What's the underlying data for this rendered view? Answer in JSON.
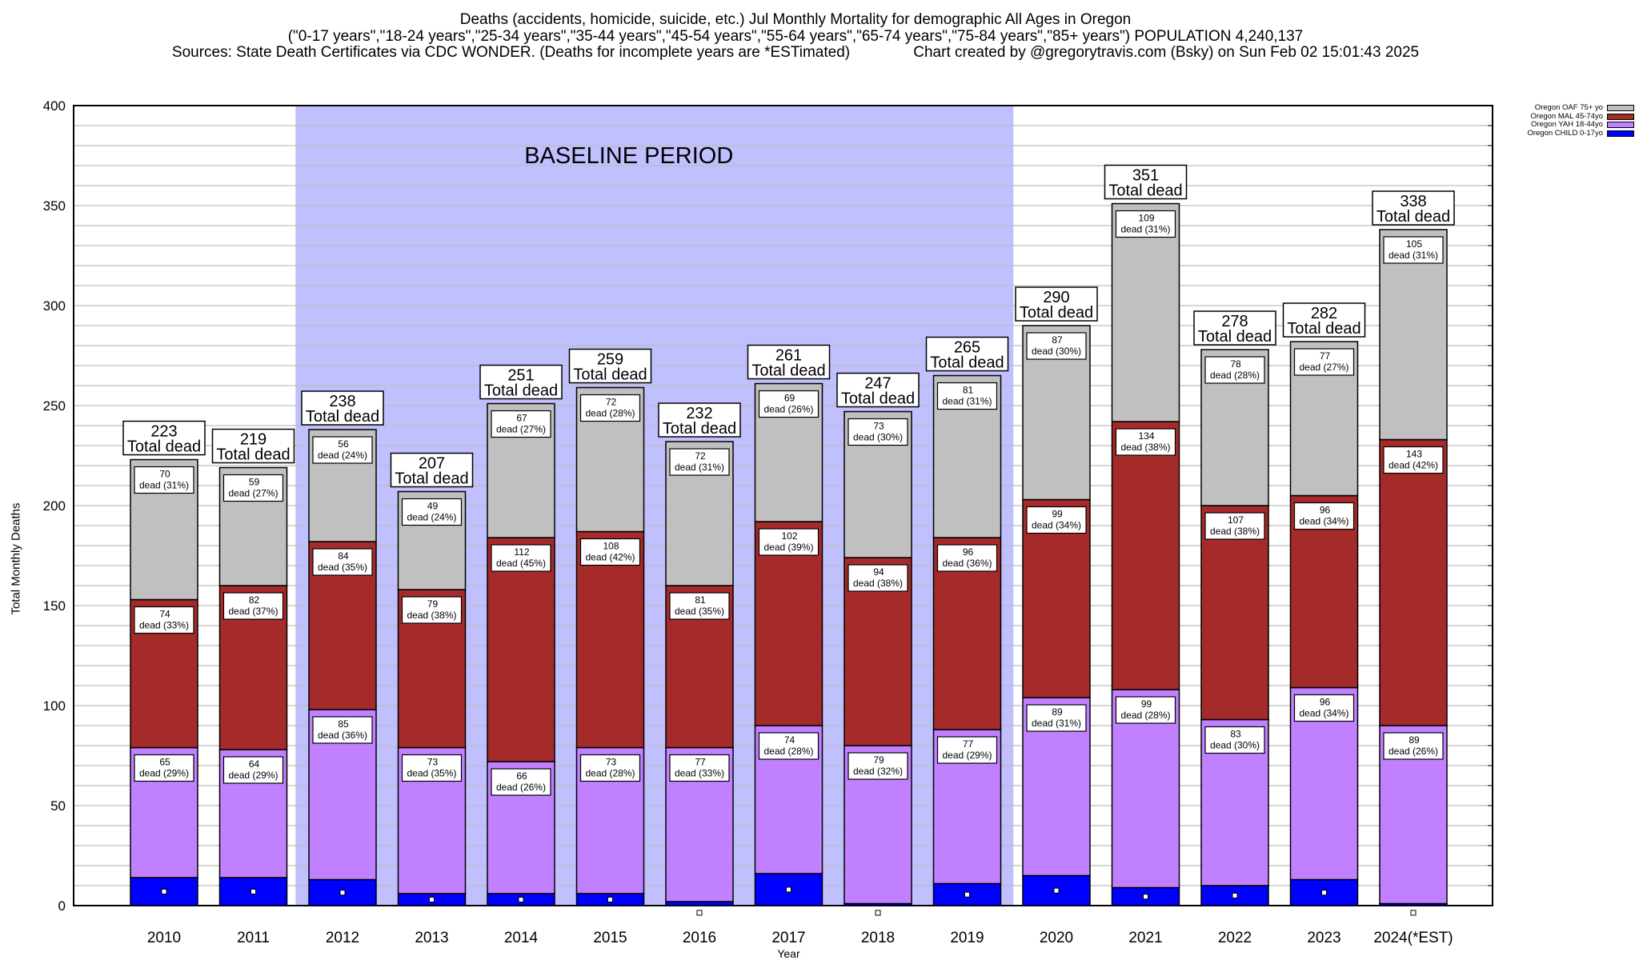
{
  "title": {
    "line1": "Deaths (accidents, homicide, suicide, etc.) Jul Monthly Mortality for demographic All Ages in Oregon",
    "line2": "(\"0-17 years\",\"18-24 years\",\"25-34 years\",\"35-44 years\",\"45-54 years\",\"55-64 years\",\"65-74 years\",\"75-84 years\",\"85+ years\") POPULATION 4,240,137",
    "line3": "Sources: State Death Certificates via CDC WONDER. (Deaths for incomplete years are *ESTimated)               Chart created by @gregorytravis.com (Bsky) on Sun Feb 02 15:01:43 2025"
  },
  "chart_data": {
    "type": "bar",
    "stacked": true,
    "xlabel": "Year",
    "ylabel": "Total Monthly Deaths",
    "ylim": [
      0,
      400
    ],
    "yticks": [
      0,
      50,
      100,
      150,
      200,
      250,
      300,
      350,
      400
    ],
    "grid": true,
    "legend_position": "top-right",
    "annotation": {
      "text": "BASELINE PERIOD",
      "from_category": "2012",
      "to_category": "2019",
      "color": "#c0c0ff"
    },
    "total_label_suffix": "Total dead",
    "segment_label_word": "dead",
    "categories": [
      "2010",
      "2011",
      "2012",
      "2013",
      "2014",
      "2015",
      "2016",
      "2017",
      "2018",
      "2019",
      "2020",
      "2021",
      "2022",
      "2023",
      "2024(*EST)"
    ],
    "totals": [
      223,
      219,
      238,
      207,
      251,
      259,
      232,
      261,
      247,
      265,
      290,
      351,
      278,
      282,
      338
    ],
    "series": [
      {
        "name": "Oregon CHILD 0-17yo",
        "color": "#0000ff",
        "labeled": false,
        "values": [
          14,
          14,
          13,
          6,
          6,
          6,
          2,
          16,
          1,
          11,
          15,
          9,
          10,
          13,
          1
        ]
      },
      {
        "name": "Oregon YAH 18-44yo",
        "color": "#c080ff",
        "labeled": true,
        "values": [
          65,
          64,
          85,
          73,
          66,
          73,
          77,
          74,
          79,
          77,
          89,
          99,
          83,
          96,
          89
        ],
        "percents": [
          29,
          29,
          36,
          35,
          26,
          28,
          33,
          28,
          32,
          29,
          31,
          28,
          30,
          34,
          26
        ]
      },
      {
        "name": "Oregon MAL 45-74yo",
        "color": "#a52a2a",
        "labeled": true,
        "values": [
          74,
          82,
          84,
          79,
          112,
          108,
          81,
          102,
          94,
          96,
          99,
          134,
          107,
          96,
          143
        ],
        "percents": [
          33,
          37,
          35,
          38,
          45,
          42,
          35,
          39,
          38,
          36,
          34,
          38,
          38,
          34,
          42
        ]
      },
      {
        "name": "Oregon OAF 75+ yo",
        "color": "#c0c0c0",
        "labeled": true,
        "values": [
          70,
          59,
          56,
          49,
          67,
          72,
          72,
          69,
          73,
          81,
          87,
          109,
          78,
          77,
          105
        ],
        "percents": [
          31,
          27,
          24,
          24,
          27,
          28,
          31,
          26,
          30,
          31,
          30,
          31,
          28,
          27,
          31
        ]
      }
    ]
  }
}
